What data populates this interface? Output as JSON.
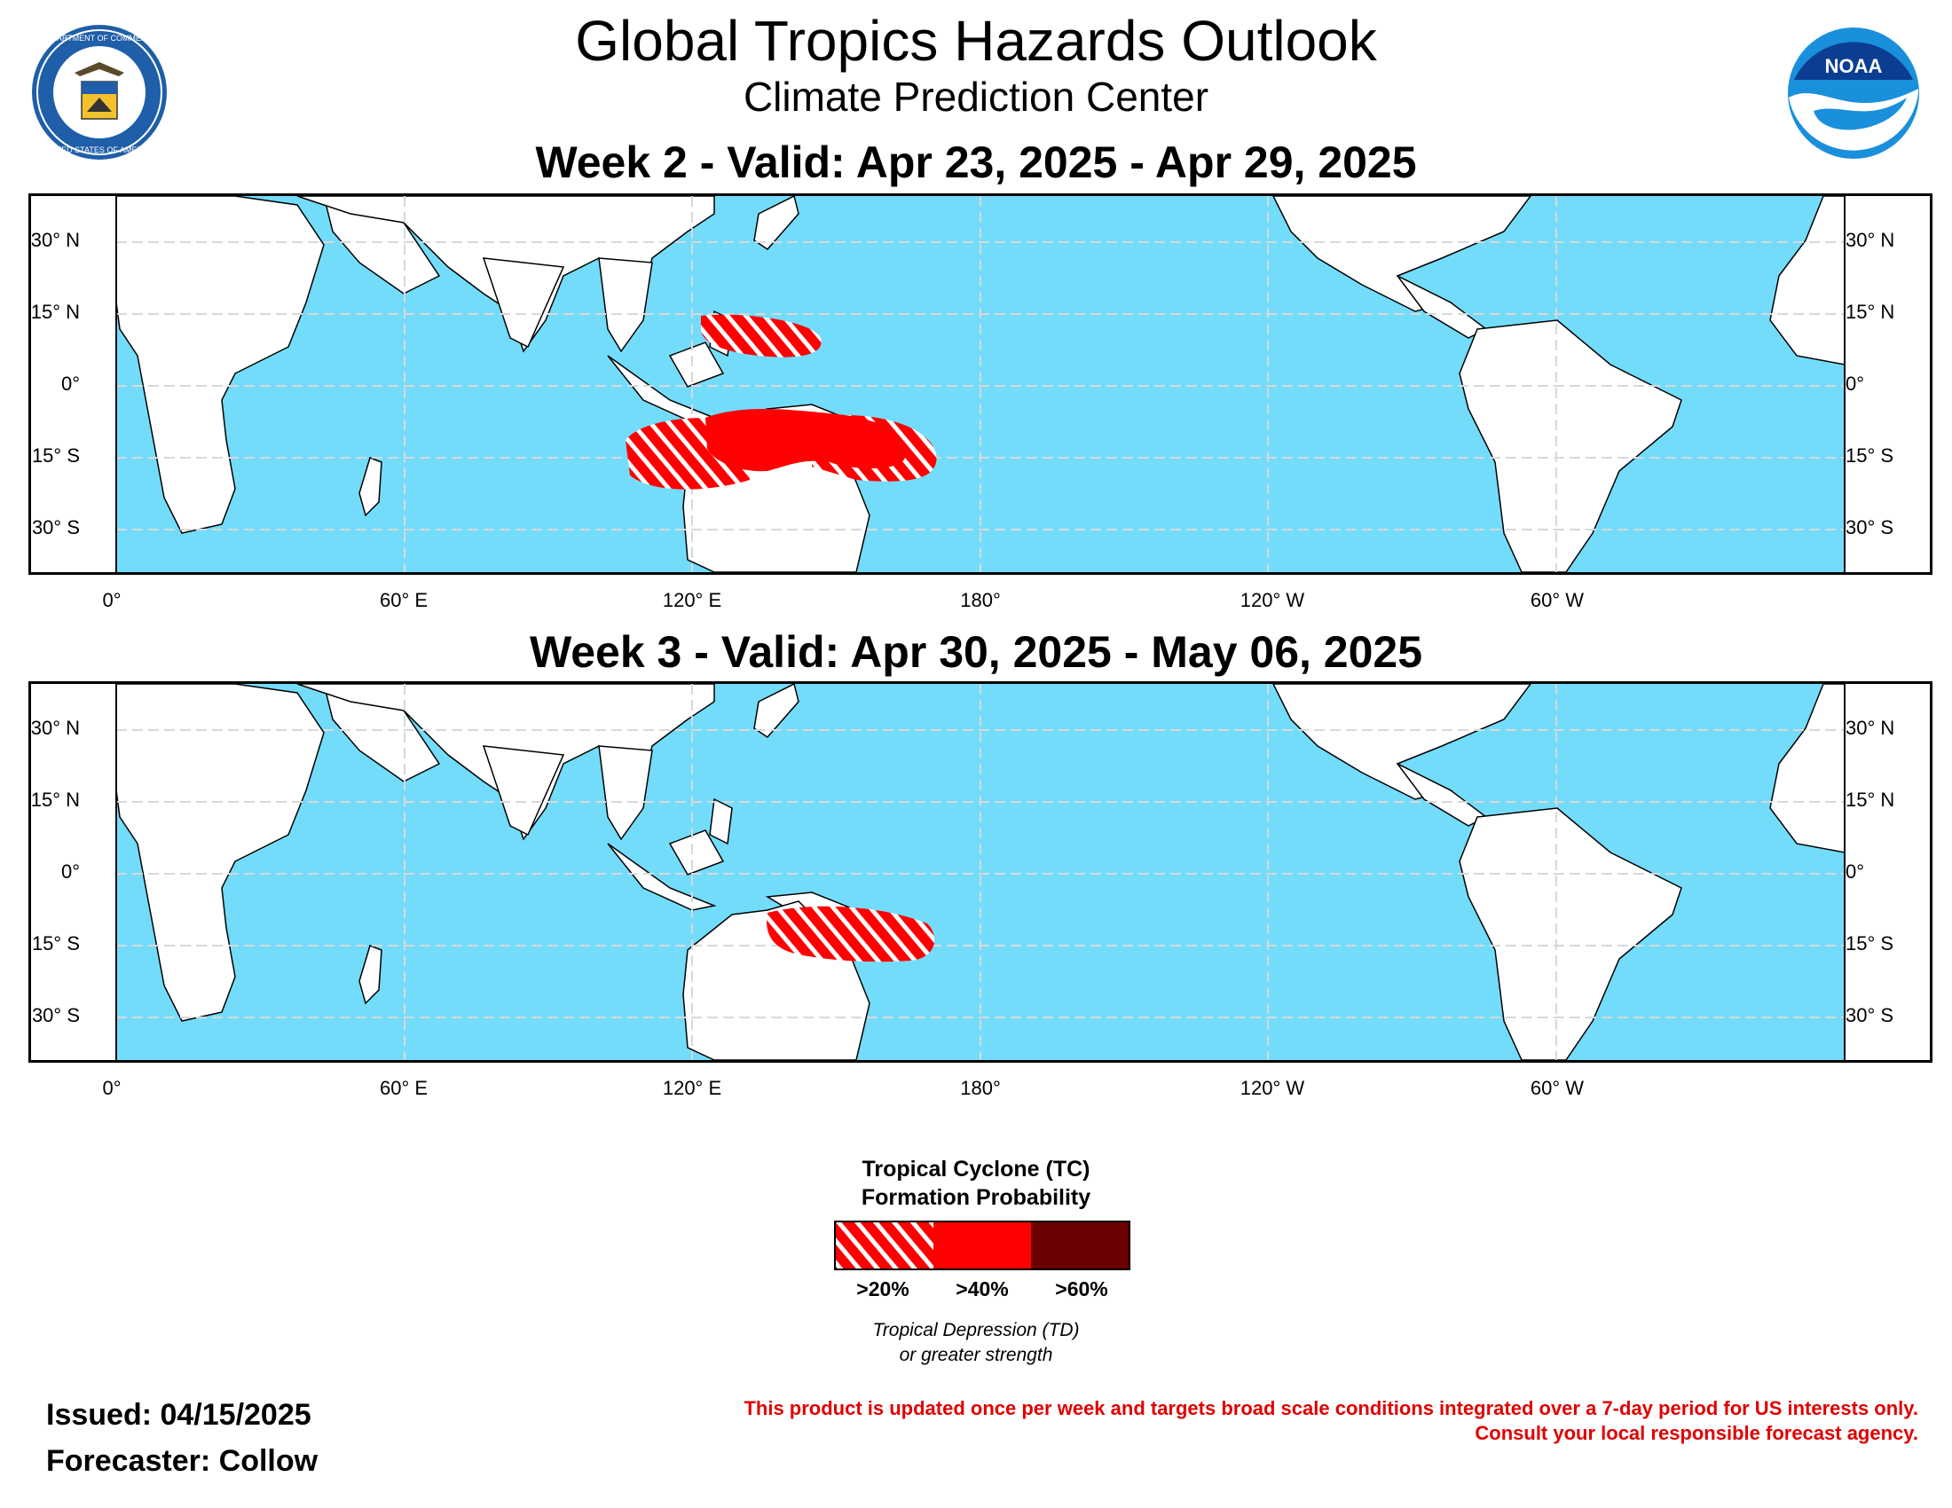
{
  "header": {
    "title": "Global Tropics Hazards Outlook",
    "subtitle": "Climate Prediction Center",
    "left_logo": {
      "name": "doc-seal",
      "text_top": "DEPARTMENT OF COMMERCE",
      "text_bottom": "UNITED STATES OF AMERICA"
    },
    "right_logo": {
      "name": "noaa-logo",
      "text": "NOAA"
    }
  },
  "colors": {
    "ocean": "#73dcfb",
    "land": "#ffffff",
    "border": "#000000",
    "grid": "#d8d8d8",
    "p20": "#ff0000",
    "p40": "#ff0000",
    "p60": "#6b0000"
  },
  "maps": [
    {
      "title": "Week 2 - Valid: Apr 23, 2025 - Apr 29, 2025",
      "hazards": [
        {
          "category": ">20%",
          "region": "Western North Pacific east of the Philippines"
        },
        {
          "category": ">20%",
          "region": "Timor Sea / northwest of Australia"
        },
        {
          "category": ">40%",
          "region": "Northern Australia, Arafura Sea and Gulf of Carpentaria"
        },
        {
          "category": ">20%",
          "region": "Coral Sea / Solomon Sea"
        }
      ]
    },
    {
      "title": "Week 3 - Valid: Apr 30, 2025 - May 06, 2025",
      "hazards": [
        {
          "category": ">20%",
          "region": "Arafura Sea, Gulf of Carpentaria and Coral Sea"
        }
      ]
    }
  ],
  "axes": {
    "lat_left": [
      "30° N",
      "15° N",
      "0°",
      "15° S",
      "30° S"
    ],
    "lat_right": [
      "30° N",
      "15° N",
      "0°",
      "15° S",
      "30° S"
    ],
    "lon": [
      "0°",
      "60° E",
      "120° E",
      "180°",
      "120° W",
      "60° W"
    ]
  },
  "legend": {
    "title_line1": "Tropical Cyclone (TC)",
    "title_line2": "Formation Probability",
    "items": [
      ">20%",
      ">40%",
      ">60%"
    ],
    "note_line1": "Tropical Depression (TD)",
    "note_line2": "or greater strength"
  },
  "footer": {
    "issued": "Issued: 04/15/2025",
    "forecaster": "Forecaster: Collow",
    "disclaimer_line1": "This product is updated once per week and targets broad scale conditions integrated over a 7-day period for US interests only.",
    "disclaimer_line2": "Consult your local responsible forecast agency."
  }
}
